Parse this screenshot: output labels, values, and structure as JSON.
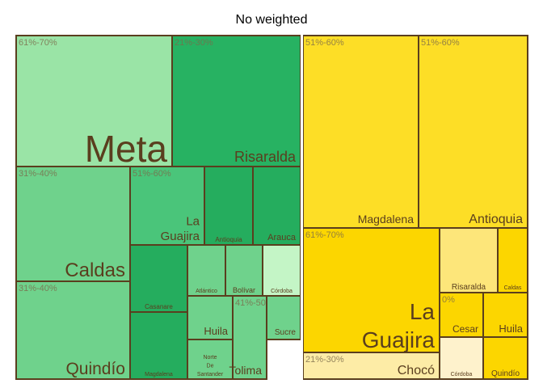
{
  "chart_data": {
    "type": "treemap",
    "title": "No weighted",
    "colors": {
      "border": "#5a3e1e",
      "label": "#5a3e1e",
      "group_label": "#7b6a4a",
      "separator": "#ffffff"
    },
    "panels": [
      {
        "name": "left",
        "cells": [
          {
            "group": "61%-70%",
            "label": "Meta",
            "color": "#9ae4a6"
          },
          {
            "group": "21%-30%",
            "label": "Risaralda",
            "color": "#27b262"
          },
          {
            "group": "31%-40%",
            "label": "Caldas",
            "color": "#6fd28c"
          },
          {
            "group": "31%-40%",
            "label": "Quindío",
            "color": "#6fd28c"
          },
          {
            "group": "51%-60%",
            "label": "La Guajira",
            "color": "#4ac57a"
          },
          {
            "group": "",
            "label": "Antioquia",
            "color": "#25ad5e"
          },
          {
            "group": "",
            "label": "Arauca",
            "color": "#25ad5e"
          },
          {
            "group": "",
            "label": "Casanare",
            "color": "#25ad5e"
          },
          {
            "group": "",
            "label": "Magdalena",
            "color": "#25ad5e"
          },
          {
            "group": "",
            "label": "Atlántico",
            "color": "#6fd28c"
          },
          {
            "group": "",
            "label": "Bolívar",
            "color": "#6fd28c"
          },
          {
            "group": "",
            "label": "Córdoba",
            "color": "#c4f5c6"
          },
          {
            "group": "",
            "label": "Huila",
            "color": "#6fd28c"
          },
          {
            "group": "",
            "label": "Norte De Santander",
            "color": "#6fd28c"
          },
          {
            "group": "41%-50%",
            "label": "Tolima",
            "color": "#6fd28c"
          },
          {
            "group": "",
            "label": "Sucre",
            "color": "#6fd28c"
          }
        ]
      },
      {
        "name": "right",
        "cells": [
          {
            "group": "51%-60%",
            "label": "Magdalena",
            "color": "#fdde26"
          },
          {
            "group": "51%-60%",
            "label": "Antioquia",
            "color": "#fdde26"
          },
          {
            "group": "61%-70%",
            "label": "La Guajira",
            "color": "#fcd600"
          },
          {
            "group": "21%-30%",
            "label": "Chocó",
            "color": "#fdeca6"
          },
          {
            "group": "",
            "label": "Risaralda",
            "color": "#fde67a"
          },
          {
            "group": "",
            "label": "Caldas",
            "color": "#fcd600"
          },
          {
            "group": "0%",
            "label": "Cesar",
            "color": "#fcd600"
          },
          {
            "group": "",
            "label": "Huila",
            "color": "#fcd600"
          },
          {
            "group": "",
            "label": "Córdoba",
            "color": "#fef2cc"
          },
          {
            "group": "",
            "label": "Quindío",
            "color": "#fcd600"
          }
        ]
      }
    ]
  }
}
